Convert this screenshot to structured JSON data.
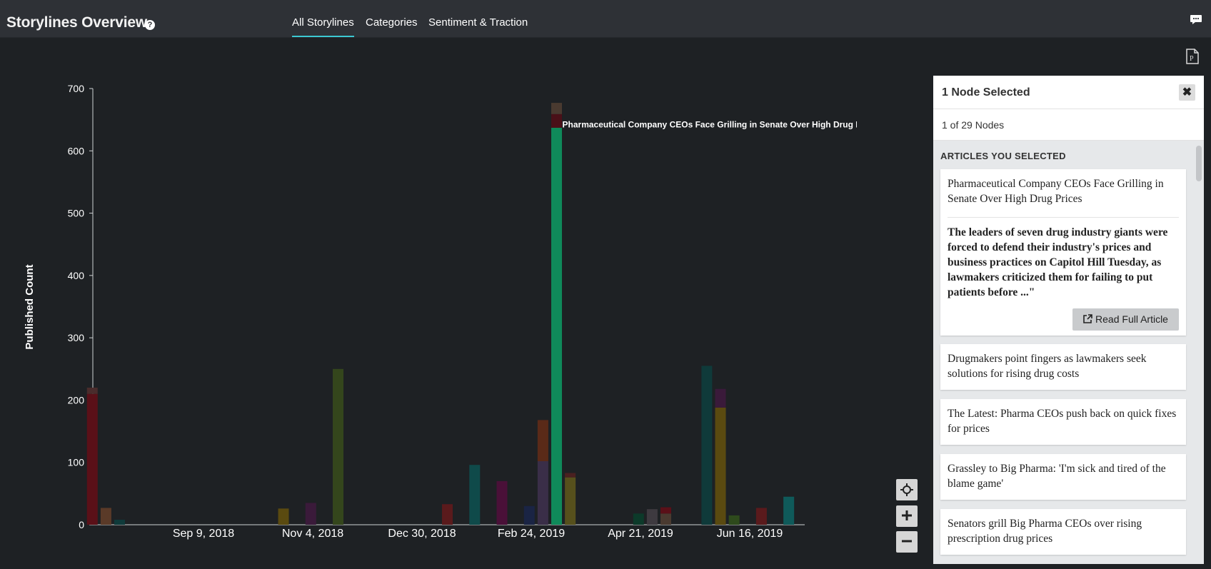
{
  "header": {
    "title": "Storylines Overview",
    "help_glyph": "?",
    "tabs": [
      {
        "label": "All Storylines",
        "active": true
      },
      {
        "label": "Categories",
        "active": false
      },
      {
        "label": "Sentiment & Traction",
        "active": false
      }
    ],
    "icons": [
      "help-icon",
      "chat-icon",
      "pdf-export-icon"
    ]
  },
  "chart_data": {
    "type": "bar",
    "title": "",
    "ylabel": "Published Count",
    "xlabel": "",
    "ylim": [
      0,
      700
    ],
    "yticks": [
      0,
      100,
      200,
      300,
      400,
      500,
      600,
      700
    ],
    "xticks": [
      "Sep 9, 2018",
      "Nov 4, 2018",
      "Dec 30, 2018",
      "Feb 24, 2019",
      "Apr 21, 2019",
      "Jun 16, 2019"
    ],
    "bars": [
      {
        "date": "2018-07-14",
        "segments": [
          {
            "value": 210,
            "color": "#5a1018"
          },
          {
            "value": 10,
            "color": "#4a2c2c"
          }
        ]
      },
      {
        "date": "2018-07-21",
        "segments": [
          {
            "value": 27,
            "color": "#5a3a28"
          }
        ]
      },
      {
        "date": "2018-07-28",
        "segments": [
          {
            "value": 8,
            "color": "#0f3a3a"
          }
        ]
      },
      {
        "date": "2018-10-20",
        "segments": [
          {
            "value": 26,
            "color": "#5a4a10"
          }
        ]
      },
      {
        "date": "2018-11-03",
        "segments": [
          {
            "value": 35,
            "color": "#3a1a3a"
          }
        ]
      },
      {
        "date": "2018-11-17",
        "segments": [
          {
            "value": 250,
            "color": "#34461c"
          }
        ]
      },
      {
        "date": "2019-01-12",
        "segments": [
          {
            "value": 33,
            "color": "#5a1a1c"
          }
        ]
      },
      {
        "date": "2019-01-26",
        "segments": [
          {
            "value": 96,
            "color": "#0f4a4a"
          }
        ]
      },
      {
        "date": "2019-02-09",
        "segments": [
          {
            "value": 70,
            "color": "#4a1038"
          }
        ]
      },
      {
        "date": "2019-02-23",
        "segments": [
          {
            "value": 30,
            "color": "#1a2444"
          }
        ]
      },
      {
        "date": "2019-03-02",
        "segments": [
          {
            "value": 102,
            "color": "#3a2e48"
          },
          {
            "value": 66,
            "color": "#5a2a18"
          }
        ]
      },
      {
        "date": "2019-03-09",
        "segments": [
          {
            "value": 637,
            "color": "#0f8a5a"
          },
          {
            "value": 22,
            "color": "#4a1018"
          },
          {
            "value": 18,
            "color": "#4a3a30"
          }
        ]
      },
      {
        "date": "2019-03-16",
        "segments": [
          {
            "value": 76,
            "color": "#56501c"
          },
          {
            "value": 7,
            "color": "#4a2020"
          }
        ]
      },
      {
        "date": "2019-04-20",
        "segments": [
          {
            "value": 18,
            "color": "#0c3a2a"
          }
        ]
      },
      {
        "date": "2019-04-27",
        "segments": [
          {
            "value": 25,
            "color": "#3e3a40"
          }
        ]
      },
      {
        "date": "2019-05-04",
        "segments": [
          {
            "value": 18,
            "color": "#4a3a30"
          },
          {
            "value": 10,
            "color": "#5a1018"
          }
        ]
      },
      {
        "date": "2019-05-25",
        "segments": [
          {
            "value": 255,
            "color": "#0f3a3a"
          }
        ]
      },
      {
        "date": "2019-06-01",
        "segments": [
          {
            "value": 188,
            "color": "#5a4a10"
          },
          {
            "value": 30,
            "color": "#3a1a3a"
          }
        ]
      },
      {
        "date": "2019-06-08",
        "segments": [
          {
            "value": 15,
            "color": "#2e4a1c"
          }
        ]
      },
      {
        "date": "2019-06-22",
        "segments": [
          {
            "value": 27,
            "color": "#5a1a1c"
          }
        ]
      },
      {
        "date": "2019-07-06",
        "segments": [
          {
            "value": 45,
            "color": "#0f5a5a"
          }
        ]
      }
    ],
    "annotation": {
      "date": "2019-03-09",
      "value": 640,
      "text": "Pharmaceutical Company CEOs Face Grilling in Senate Over High Drug Prices."
    },
    "grid": false
  },
  "zoom_controls": {
    "icons": [
      "recenter-icon",
      "zoom-in-icon",
      "zoom-out-icon"
    ]
  },
  "panel": {
    "title": "1 Node Selected",
    "close_glyph": "✖",
    "subtitle": "1 of 29 Nodes",
    "section_title": "ARTICLES YOU SELECTED",
    "selected_article": {
      "title": "Pharmaceutical Company CEOs Face Grilling in Senate Over High Drug Prices",
      "excerpt": "The leaders of seven drug industry giants were forced to defend their industry's prices and business practices on Capitol Hill Tuesday, as lawmakers criticized them for failing to put patients before ...\"",
      "button_label": "Read Full Article"
    },
    "articles": [
      {
        "title": "Drugmakers point fingers as lawmakers seek solutions for rising drug costs"
      },
      {
        "title": "The Latest: Pharma CEOs push back on quick fixes for prices"
      },
      {
        "title": "Grassley to Big Pharma: 'I'm sick and tired of the blame game'"
      },
      {
        "title": "Senators grill Big Pharma CEOs over rising prescription drug prices"
      }
    ]
  }
}
